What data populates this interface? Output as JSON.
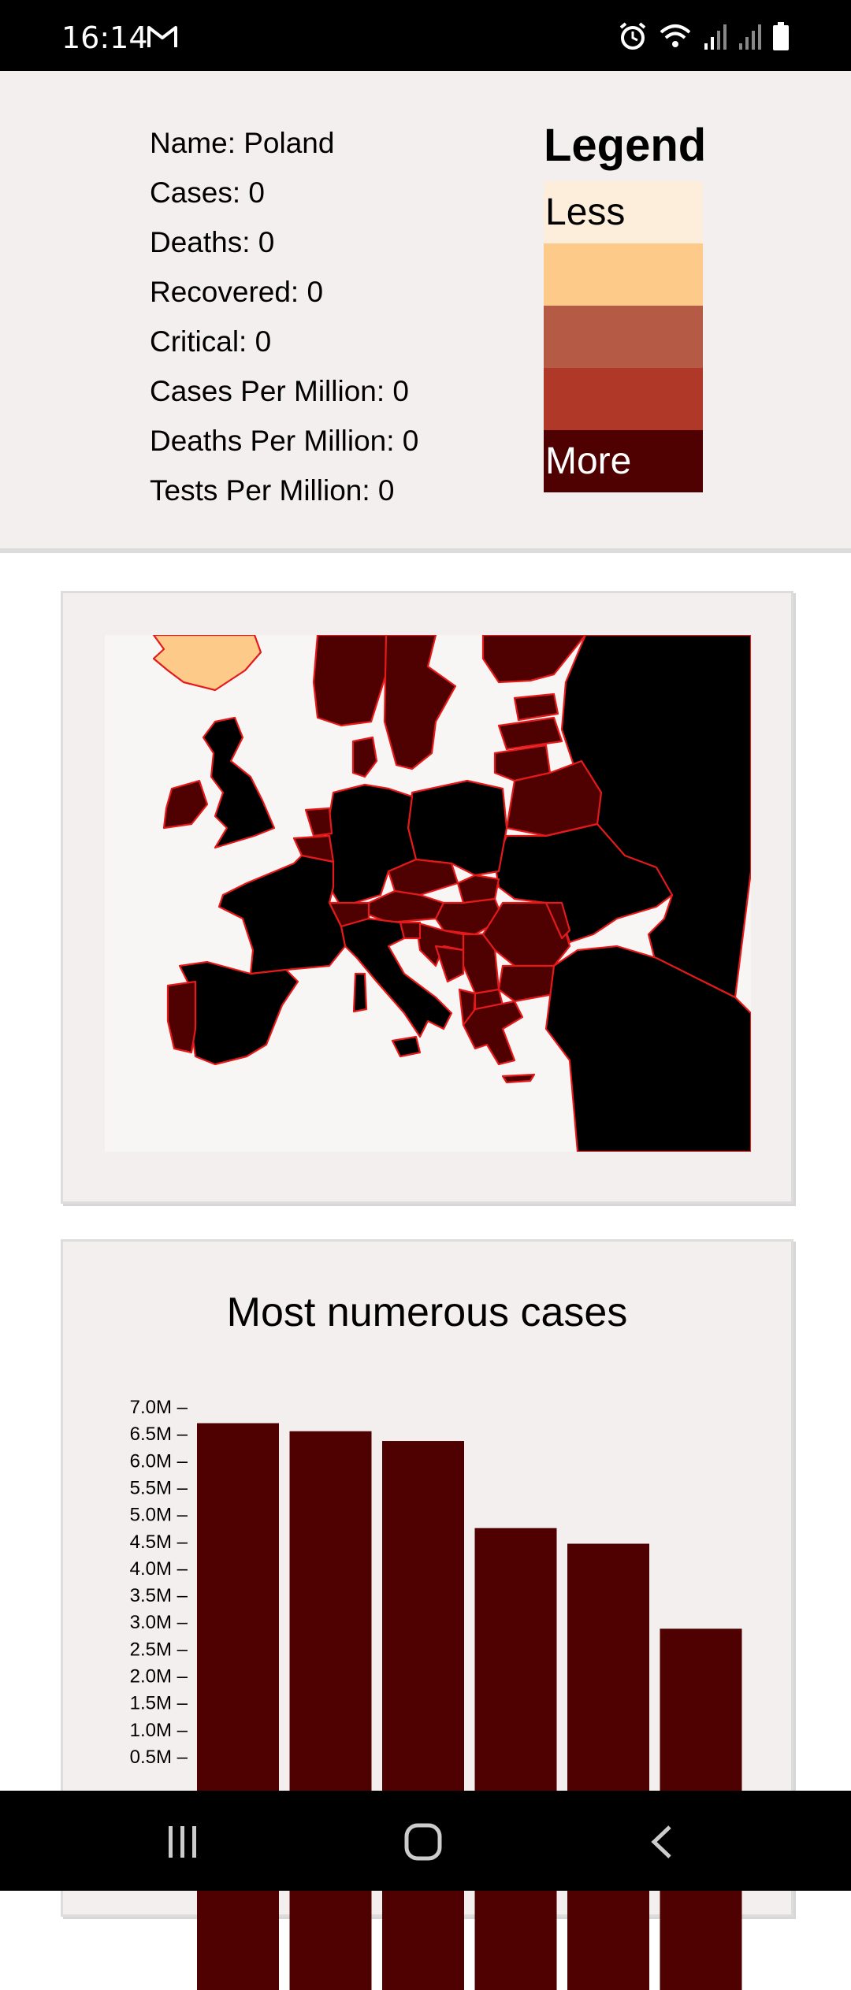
{
  "status_bar": {
    "time": "16:14",
    "icons": [
      "gmail-icon",
      "alarm-icon",
      "wifi-icon",
      "signal-icon",
      "signal-icon",
      "battery-icon"
    ]
  },
  "country_info": {
    "name": "Name: Poland",
    "cases": "Cases: 0",
    "deaths": "Deaths: 0",
    "recovered": "Recovered: 0",
    "critical": "Critical: 0",
    "cases_per_million": "Cases Per Million: 0",
    "deaths_per_million": "Deaths Per Million: 0",
    "tests_per_million": "Tests Per Million: 0"
  },
  "legend": {
    "title": "Legend",
    "less_label": "Less",
    "more_label": "More",
    "colors": [
      "#fdeedb",
      "#fdca8a",
      "#b55a44",
      "#b03829",
      "#4f0000"
    ]
  },
  "map": {
    "fill_color": "#4f0000",
    "no_data_color": "#000000",
    "low_color": "#fdca8a",
    "border_color": "#e41a1a",
    "water_color": "#f8f5f5"
  },
  "chart_data": {
    "type": "bar",
    "title": "Most numerous cases",
    "categories": [
      "",
      "",
      "",
      "",
      "",
      ""
    ],
    "values": [
      6700000,
      6550000,
      6370000,
      4750000,
      4460000,
      2880000
    ],
    "ylim": [
      0,
      7000000
    ],
    "yticks": [
      "7.0M –",
      "6.5M –",
      "6.0M –",
      "5.5M –",
      "5.0M –",
      "4.5M –",
      "4.0M –",
      "3.5M –",
      "3.0M –",
      "2.5M –",
      "2.0M –",
      "1.5M –",
      "1.0M –",
      "0.5M –"
    ],
    "bar_color": "#4f0000",
    "grid": false
  },
  "nav_bar": {
    "icons": [
      "recent-apps-icon",
      "home-icon",
      "back-icon"
    ]
  }
}
